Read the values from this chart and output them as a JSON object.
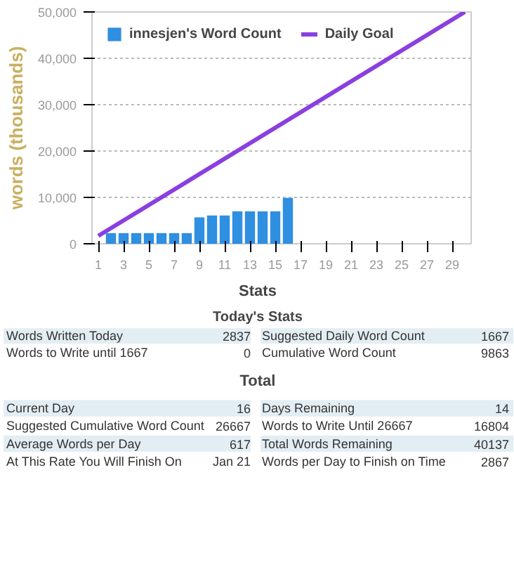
{
  "chart_data": [
    {
      "type": "bar",
      "ylabel": "words (thousands)",
      "xlim": [
        0.5,
        30.5
      ],
      "ylim": [
        0,
        50000
      ],
      "xticks": [
        1,
        3,
        5,
        7,
        9,
        11,
        13,
        15,
        17,
        19,
        21,
        23,
        25,
        27,
        29
      ],
      "yticks": [
        0,
        {
          "value": 10000,
          "label": "10,000"
        },
        {
          "value": 20000,
          "label": "20,000"
        },
        {
          "value": 30000,
          "label": "30,000"
        },
        {
          "value": 40000,
          "label": "40,000"
        },
        {
          "value": 50000,
          "label": "50,000"
        }
      ],
      "grid": "y",
      "legend": "top left",
      "series": [
        {
          "name": "innesjen's Word Count",
          "type": "bar",
          "color": "#2f8fe0",
          "x": [
            2,
            3,
            4,
            5,
            6,
            7,
            8,
            9,
            10,
            11,
            12,
            13,
            14,
            15,
            16
          ],
          "values": [
            2300,
            2300,
            2300,
            2300,
            2300,
            2300,
            2300,
            5700,
            6100,
            6100,
            7000,
            7000,
            7000,
            7000,
            9900
          ]
        },
        {
          "name": "Daily Goal",
          "type": "line",
          "color": "#8a3fe0",
          "x": [
            1,
            30
          ],
          "values": [
            1700,
            50000
          ]
        }
      ]
    },
    {
      "type": "other",
      "title": "Stats",
      "subtitle": "Today's Stats",
      "annotations": [
        "Words Written Today",
        "2837",
        "Suggested Daily Word Count",
        "1667",
        "Words to Write until 1667",
        "0",
        "Cumulative Word Count",
        "9863"
      ]
    },
    {
      "type": "other",
      "title": "Total",
      "annotations": [
        "Current Day",
        "16",
        "Days Remaining",
        "14",
        "Suggested Cumulative Word Count",
        "26667",
        "Words to Write Until 26667",
        "16804",
        "Average Words per Day",
        "617",
        "Total Words Remaining",
        "40137",
        "At This Rate You Will Finish On",
        "Jan 21",
        "Words per Day to Finish on Time",
        "2867"
      ]
    }
  ]
}
